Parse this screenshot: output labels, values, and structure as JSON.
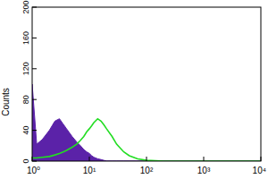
{
  "chart_data": {
    "type": "line",
    "y_label": "Counts",
    "log": "x",
    "x": [
      1,
      1.2,
      1.5,
      2,
      2.5,
      3,
      3.5,
      4,
      5,
      6,
      7,
      8,
      9,
      10,
      11,
      12,
      14,
      16,
      18,
      20,
      25,
      30,
      40,
      50,
      70,
      100,
      200,
      10000
    ],
    "series": [
      {
        "type": "area",
        "color": "#5b22a8",
        "values": [
          100,
          22,
          28,
          40,
          52,
          55,
          48,
          42,
          32,
          25,
          20,
          15,
          12,
          10,
          7,
          5,
          3,
          2,
          1,
          0,
          0,
          0,
          0,
          0,
          0,
          0,
          0,
          0
        ]
      },
      {
        "type": "line",
        "color": "#22dd22",
        "values": [
          4,
          4,
          5,
          6,
          8,
          10,
          12,
          14,
          18,
          22,
          27,
          32,
          38,
          42,
          46,
          50,
          55,
          52,
          47,
          42,
          32,
          22,
          12,
          7,
          3,
          1,
          0,
          0
        ]
      }
    ],
    "xlim": [
      1,
      10000
    ],
    "xticks": [
      {
        "value": 1,
        "label": "10⁰"
      },
      {
        "value": 10,
        "label": "10¹"
      },
      {
        "value": 100,
        "label": "10²"
      },
      {
        "value": 1000,
        "label": "10³"
      },
      {
        "value": 10000,
        "label": "10⁴"
      }
    ],
    "ylim": [
      0,
      200
    ],
    "yticks": [
      0,
      40,
      80,
      120,
      160,
      200
    ],
    "grid": false
  }
}
